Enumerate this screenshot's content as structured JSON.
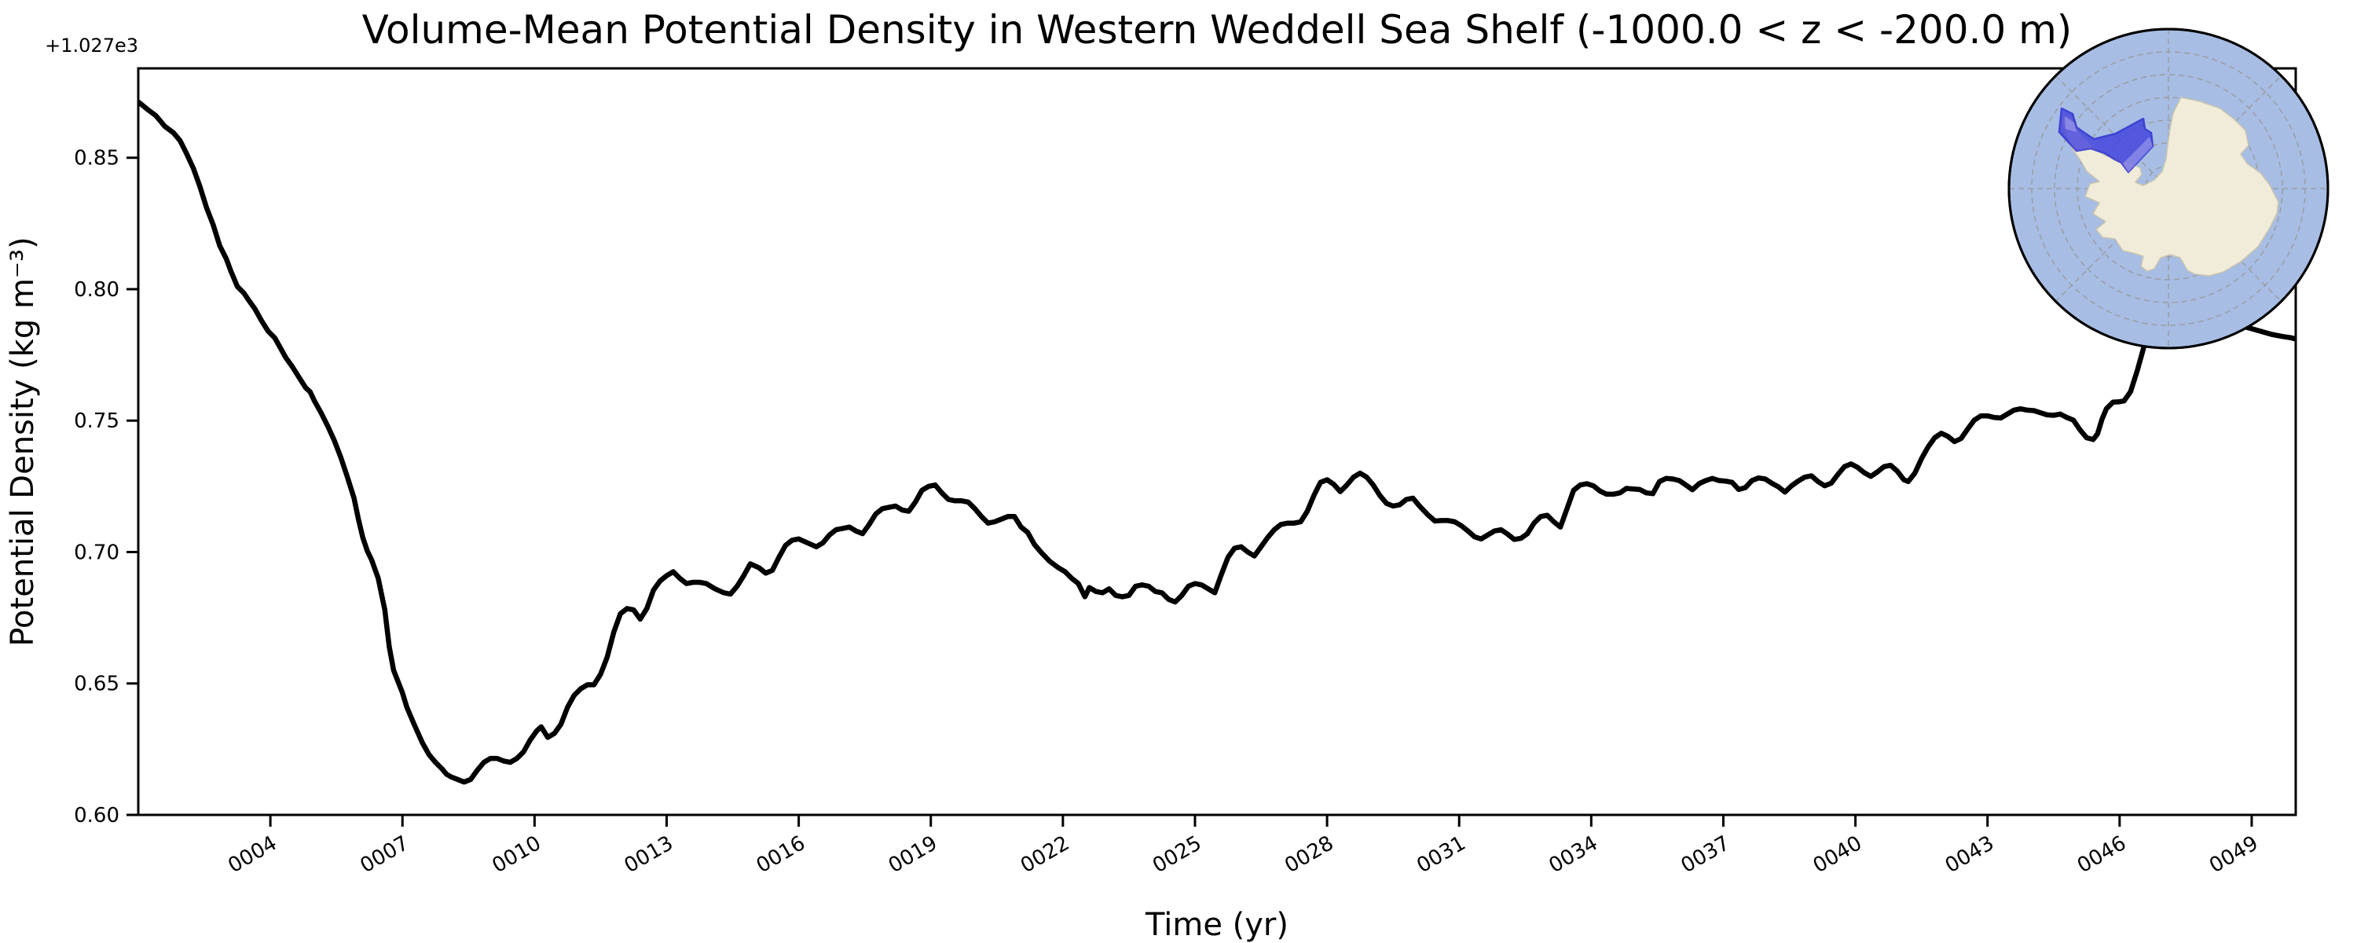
{
  "figure": {
    "background": "#ffffff"
  },
  "chart_data": {
    "type": "line",
    "title": "Volume-Mean Potential Density in Western Weddell Sea Shelf (-1000.0 < z < -200.0 m)",
    "xlabel": "Time (yr)",
    "ylabel": "Potential Density (kg m⁻³)",
    "y_offset_label": "+1.027e3",
    "xlim": [
      1,
      50
    ],
    "ylim": [
      0.6,
      0.884
    ],
    "grid": false,
    "legend": "none",
    "line_color": "#000000",
    "line_width": 6.5,
    "xticks": {
      "values": [
        4,
        7,
        10,
        13,
        16,
        19,
        22,
        25,
        28,
        31,
        34,
        37,
        40,
        43,
        46,
        49
      ],
      "labels": [
        "0004",
        "0007",
        "0010",
        "0013",
        "0016",
        "0019",
        "0022",
        "0025",
        "0028",
        "0031",
        "0034",
        "0037",
        "0040",
        "0043",
        "0046",
        "0049"
      ],
      "rotation_deg": -30
    },
    "yticks": {
      "values": [
        0.6,
        0.65,
        0.7,
        0.75,
        0.8,
        0.85
      ],
      "labels": [
        "0.60",
        "0.65",
        "0.70",
        "0.75",
        "0.80",
        "0.85"
      ]
    },
    "series": [
      {
        "name": "volume-mean potential density (kg m-3, offset +1.027e3)",
        "x": [
          1.02,
          1.2,
          1.4,
          1.6,
          1.8,
          1.95,
          2.1,
          2.25,
          2.4,
          2.55,
          2.7,
          2.85,
          3.0,
          3.1,
          3.25,
          3.4,
          3.5,
          3.65,
          3.8,
          3.95,
          4.1,
          4.2,
          4.35,
          4.5,
          4.65,
          4.8,
          4.9,
          5.0,
          5.15,
          5.3,
          5.45,
          5.6,
          5.75,
          5.9,
          6.0,
          6.1,
          6.2,
          6.3,
          6.45,
          6.6,
          6.7,
          6.8,
          7.0,
          7.1,
          7.25,
          7.45,
          7.6,
          7.75,
          7.9,
          8.0,
          8.1,
          8.25,
          8.4,
          8.55,
          8.7,
          8.85,
          9.0,
          9.15,
          9.3,
          9.45,
          9.6,
          9.75,
          9.9,
          10.05,
          10.15,
          10.3,
          10.45,
          10.6,
          10.75,
          10.9,
          11.05,
          11.2,
          11.35,
          11.5,
          11.65,
          11.8,
          11.95,
          12.1,
          12.25,
          12.4,
          12.55,
          12.7,
          12.85,
          13.0,
          13.15,
          13.3,
          13.45,
          13.6,
          13.75,
          13.9,
          14.1,
          14.3,
          14.45,
          14.6,
          14.75,
          14.9,
          15.1,
          15.25,
          15.4,
          15.55,
          15.7,
          15.85,
          16.0,
          16.2,
          16.4,
          16.55,
          16.7,
          16.85,
          17.0,
          17.15,
          17.3,
          17.45,
          17.6,
          17.75,
          17.9,
          18.05,
          18.2,
          18.35,
          18.5,
          18.65,
          18.8,
          18.95,
          19.1,
          19.25,
          19.4,
          19.55,
          19.7,
          19.85,
          20.0,
          20.15,
          20.3,
          20.45,
          20.6,
          20.75,
          20.9,
          21.05,
          21.2,
          21.35,
          21.5,
          21.7,
          21.9,
          22.05,
          22.2,
          22.35,
          22.5,
          22.6,
          22.75,
          22.9,
          23.05,
          23.2,
          23.35,
          23.5,
          23.65,
          23.8,
          23.95,
          24.1,
          24.25,
          24.4,
          24.55,
          24.7,
          24.85,
          25.0,
          25.15,
          25.3,
          25.45,
          25.6,
          25.75,
          25.9,
          26.05,
          26.2,
          26.35,
          26.5,
          26.65,
          26.8,
          26.95,
          27.1,
          27.25,
          27.4,
          27.55,
          27.7,
          27.85,
          28.0,
          28.15,
          28.3,
          28.45,
          28.6,
          28.75,
          28.9,
          29.05,
          29.2,
          29.35,
          29.5,
          29.65,
          29.8,
          29.95,
          30.1,
          30.3,
          30.45,
          30.6,
          30.75,
          30.9,
          31.05,
          31.2,
          31.35,
          31.5,
          31.65,
          31.8,
          31.95,
          32.1,
          32.25,
          32.4,
          32.55,
          32.7,
          32.85,
          33.0,
          33.15,
          33.3,
          33.45,
          33.6,
          33.75,
          33.9,
          34.05,
          34.2,
          34.35,
          34.5,
          34.65,
          34.8,
          34.95,
          35.1,
          35.25,
          35.4,
          35.55,
          35.7,
          35.85,
          36.0,
          36.15,
          36.3,
          36.45,
          36.6,
          36.75,
          36.9,
          37.05,
          37.2,
          37.35,
          37.5,
          37.65,
          37.8,
          37.95,
          38.1,
          38.25,
          38.4,
          38.55,
          38.7,
          38.85,
          39.0,
          39.15,
          39.3,
          39.45,
          39.6,
          39.75,
          39.9,
          40.05,
          40.2,
          40.35,
          40.5,
          40.65,
          40.8,
          40.95,
          41.1,
          41.2,
          41.35,
          41.5,
          41.65,
          41.8,
          41.95,
          42.1,
          42.25,
          42.4,
          42.55,
          42.7,
          42.85,
          43.0,
          43.15,
          43.3,
          43.45,
          43.6,
          43.75,
          43.9,
          44.05,
          44.2,
          44.35,
          44.5,
          44.65,
          44.8,
          44.95,
          45.1,
          45.25,
          45.4,
          45.5,
          45.6,
          45.7,
          45.85,
          46.0,
          46.1,
          46.25,
          46.4,
          46.55,
          46.7,
          46.9,
          47.2,
          47.5,
          47.8,
          48.05,
          48.2,
          48.35,
          48.5,
          48.65,
          48.8,
          48.95,
          49.2,
          49.45,
          49.7,
          49.9,
          50.0
        ],
        "y": [
          0.871,
          0.8685,
          0.866,
          0.862,
          0.8595,
          0.8565,
          0.8515,
          0.846,
          0.839,
          0.831,
          0.8245,
          0.8165,
          0.8115,
          0.807,
          0.801,
          0.7985,
          0.796,
          0.7925,
          0.788,
          0.784,
          0.7815,
          0.7785,
          0.774,
          0.7705,
          0.7665,
          0.7625,
          0.761,
          0.7575,
          0.753,
          0.748,
          0.7425,
          0.736,
          0.7285,
          0.7205,
          0.7125,
          0.7055,
          0.7005,
          0.697,
          0.69,
          0.678,
          0.664,
          0.655,
          0.6465,
          0.641,
          0.635,
          0.6275,
          0.623,
          0.62,
          0.6175,
          0.6155,
          0.6145,
          0.6135,
          0.6125,
          0.6135,
          0.617,
          0.62,
          0.6215,
          0.6215,
          0.6205,
          0.62,
          0.6215,
          0.624,
          0.6285,
          0.632,
          0.6335,
          0.6295,
          0.631,
          0.6345,
          0.641,
          0.6455,
          0.648,
          0.6495,
          0.6495,
          0.6535,
          0.66,
          0.6695,
          0.6765,
          0.6785,
          0.678,
          0.6745,
          0.6785,
          0.6855,
          0.689,
          0.691,
          0.6925,
          0.69,
          0.688,
          0.6885,
          0.6885,
          0.688,
          0.686,
          0.6845,
          0.684,
          0.687,
          0.691,
          0.6955,
          0.694,
          0.692,
          0.693,
          0.698,
          0.7025,
          0.7045,
          0.705,
          0.7035,
          0.702,
          0.7035,
          0.7065,
          0.7085,
          0.709,
          0.7095,
          0.708,
          0.707,
          0.7105,
          0.7145,
          0.7165,
          0.717,
          0.7175,
          0.716,
          0.7155,
          0.719,
          0.7235,
          0.725,
          0.7255,
          0.7225,
          0.72,
          0.7195,
          0.7195,
          0.719,
          0.7165,
          0.7135,
          0.711,
          0.7115,
          0.7125,
          0.7135,
          0.7135,
          0.7095,
          0.7075,
          0.703,
          0.7,
          0.6965,
          0.694,
          0.6925,
          0.69,
          0.688,
          0.683,
          0.6865,
          0.685,
          0.6845,
          0.686,
          0.6835,
          0.683,
          0.6835,
          0.687,
          0.6875,
          0.687,
          0.685,
          0.6845,
          0.682,
          0.681,
          0.6835,
          0.687,
          0.688,
          0.6875,
          0.686,
          0.6845,
          0.6915,
          0.698,
          0.7015,
          0.702,
          0.7,
          0.6985,
          0.702,
          0.7055,
          0.7085,
          0.7105,
          0.711,
          0.711,
          0.7115,
          0.7155,
          0.7215,
          0.7265,
          0.7275,
          0.7258,
          0.723,
          0.7255,
          0.7285,
          0.73,
          0.7285,
          0.7255,
          0.7215,
          0.7185,
          0.7175,
          0.718,
          0.72,
          0.7205,
          0.7175,
          0.714,
          0.7118,
          0.712,
          0.712,
          0.7115,
          0.71,
          0.708,
          0.7058,
          0.705,
          0.7065,
          0.708,
          0.7085,
          0.7068,
          0.7048,
          0.7052,
          0.707,
          0.711,
          0.7135,
          0.714,
          0.7115,
          0.7095,
          0.7165,
          0.7235,
          0.7255,
          0.726,
          0.7252,
          0.7232,
          0.722,
          0.722,
          0.7225,
          0.7242,
          0.724,
          0.7238,
          0.7225,
          0.7222,
          0.7268,
          0.728,
          0.7278,
          0.7272,
          0.7255,
          0.7237,
          0.726,
          0.7272,
          0.728,
          0.7272,
          0.727,
          0.7265,
          0.7238,
          0.7245,
          0.7272,
          0.7282,
          0.7278,
          0.7262,
          0.7248,
          0.7228,
          0.7252,
          0.727,
          0.7285,
          0.729,
          0.7268,
          0.7252,
          0.7262,
          0.7295,
          0.7325,
          0.7335,
          0.7322,
          0.7302,
          0.7288,
          0.7305,
          0.7325,
          0.733,
          0.7308,
          0.7275,
          0.7268,
          0.73,
          0.7355,
          0.74,
          0.7435,
          0.7452,
          0.744,
          0.742,
          0.7432,
          0.7468,
          0.7502,
          0.7518,
          0.7518,
          0.7512,
          0.751,
          0.7525,
          0.754,
          0.7545,
          0.754,
          0.7538,
          0.753,
          0.7522,
          0.752,
          0.7525,
          0.7512,
          0.7502,
          0.7465,
          0.7435,
          0.7428,
          0.745,
          0.7505,
          0.7545,
          0.757,
          0.7572,
          0.7575,
          0.761,
          0.769,
          0.778,
          0.7845,
          0.788,
          0.7895,
          0.79,
          0.7898,
          0.79,
          0.7888,
          0.7868,
          0.7855,
          0.785,
          0.7858,
          0.7852,
          0.784,
          0.7828,
          0.782,
          0.7815,
          0.781
        ]
      }
    ]
  },
  "inset_map": {
    "kind": "south-polar-stereographic-locator",
    "ocean_color": "#a7bde4",
    "land_color": "#f0ecd9",
    "land_edge_color": "#c9c4ae",
    "highlight_fill": "#4040dd",
    "highlight_edge": "#2525cf",
    "highlight_patch": "#b9b9ef",
    "graticule_color": "#999999",
    "edge_color": "#000000"
  }
}
